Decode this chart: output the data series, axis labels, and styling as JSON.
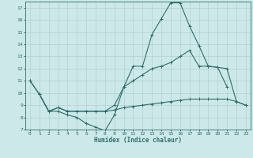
{
  "xlabel": "Humidex (Indice chaleur)",
  "xlim": [
    -0.5,
    23.5
  ],
  "ylim": [
    7,
    17.5
  ],
  "yticks": [
    7,
    8,
    9,
    10,
    11,
    12,
    13,
    14,
    15,
    16,
    17
  ],
  "xticks": [
    0,
    1,
    2,
    3,
    4,
    5,
    6,
    7,
    8,
    9,
    10,
    11,
    12,
    13,
    14,
    15,
    16,
    17,
    18,
    19,
    20,
    21,
    22,
    23
  ],
  "background_color": "#cce8e8",
  "line_color": "#2e6e6a",
  "grid_color": "#aacccc",
  "lines": [
    {
      "x": [
        0,
        1,
        2,
        3,
        4,
        5,
        6,
        7,
        8,
        9,
        10,
        11,
        12,
        13,
        14,
        15,
        16,
        17,
        18,
        19,
        20,
        21
      ],
      "y": [
        11,
        9.9,
        8.5,
        8.5,
        8.2,
        8.0,
        7.5,
        7.2,
        6.9,
        8.2,
        10.5,
        12.2,
        12.2,
        14.8,
        16.1,
        17.4,
        17.4,
        15.5,
        13.9,
        12.2,
        12.1,
        10.5
      ]
    },
    {
      "x": [
        0,
        1,
        2,
        3,
        4,
        5,
        6,
        7,
        8,
        9,
        10,
        11,
        12,
        13,
        14,
        15,
        16,
        17,
        18,
        19,
        20,
        21,
        22,
        23
      ],
      "y": [
        11,
        9.9,
        8.5,
        8.8,
        8.5,
        8.5,
        8.5,
        8.5,
        8.5,
        9.0,
        10.5,
        11.0,
        11.5,
        12.0,
        12.2,
        12.5,
        13.0,
        13.5,
        12.2,
        12.2,
        12.1,
        12.0,
        9.3,
        9.0
      ]
    },
    {
      "x": [
        1,
        2,
        3,
        4,
        5,
        6,
        7,
        8,
        9,
        10,
        11,
        12,
        13,
        14,
        15,
        16,
        17,
        18,
        19,
        20,
        21,
        22,
        23
      ],
      "y": [
        9.9,
        8.5,
        8.8,
        8.5,
        8.5,
        8.5,
        8.5,
        8.5,
        8.6,
        8.8,
        8.9,
        9.0,
        9.1,
        9.2,
        9.3,
        9.4,
        9.5,
        9.5,
        9.5,
        9.5,
        9.5,
        9.3,
        9.0
      ]
    }
  ]
}
